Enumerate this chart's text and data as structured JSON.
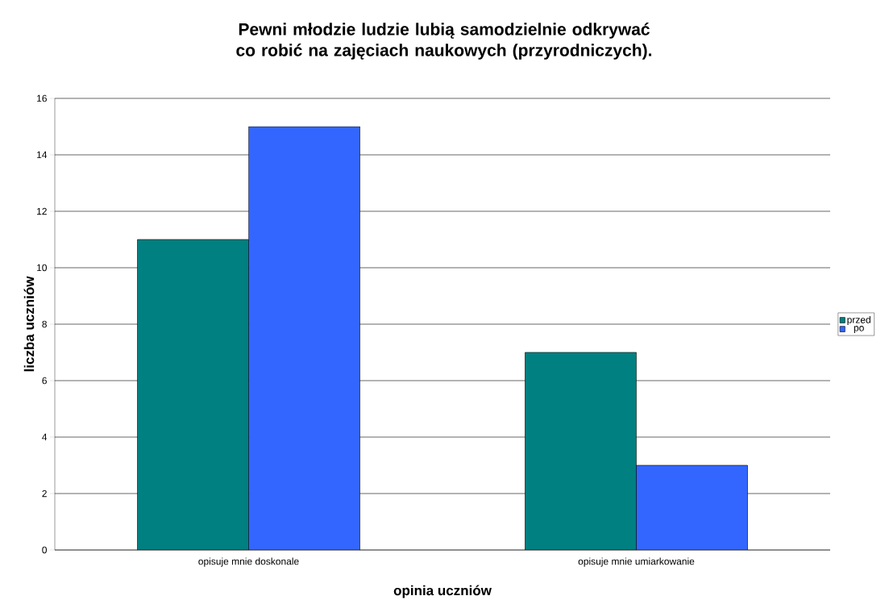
{
  "chart_data": {
    "type": "bar",
    "title": "Pewni młodzie ludzie lubią samodzielnie odkrywać co robić na zajęciach naukowych (przyrodniczych).",
    "xlabel": "opinia uczniów",
    "ylabel": "liczba uczniów",
    "categories": [
      "opisuje mnie doskonale",
      "opisuje mnie umiarkowanie"
    ],
    "series": [
      {
        "name": "przed",
        "color": "#008080",
        "values": [
          11,
          7
        ]
      },
      {
        "name": "po",
        "color": "#3366ff",
        "values": [
          15,
          3
        ]
      }
    ],
    "ylim": [
      0,
      16
    ],
    "yticks": [
      0,
      2,
      4,
      6,
      8,
      10,
      12,
      14,
      16
    ],
    "grid": "y",
    "legend": "right"
  }
}
